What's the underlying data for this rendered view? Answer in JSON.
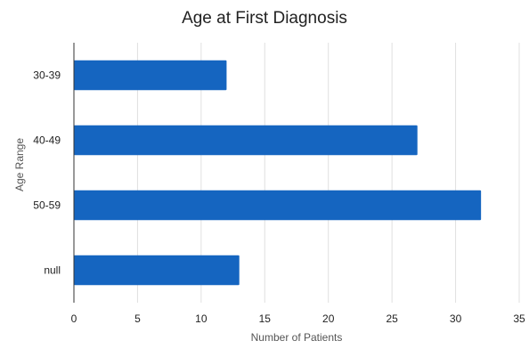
{
  "chart_data": {
    "type": "bar",
    "orientation": "horizontal",
    "title": "Age at First Diagnosis",
    "xlabel": "Number of Patients",
    "ylabel": "Age Range",
    "categories": [
      "30-39",
      "40-49",
      "50-59",
      "null"
    ],
    "values": [
      12,
      27,
      32,
      13
    ],
    "xlim": [
      0,
      35
    ],
    "xticks": [
      0,
      5,
      10,
      15,
      20,
      25,
      30,
      35
    ],
    "grid": true,
    "bar_color": "#1565c0"
  }
}
